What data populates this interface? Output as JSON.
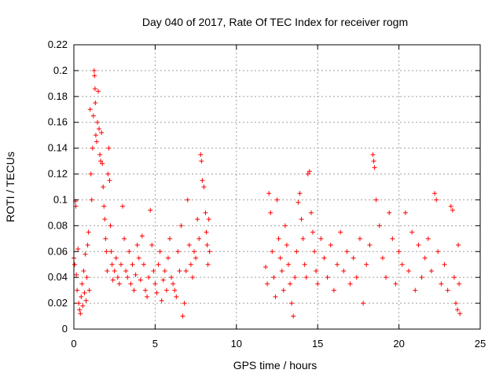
{
  "chart_data": {
    "type": "scatter",
    "title": "Day 040 of 2017, Rate Of TEC Index for receiver rogm",
    "xlabel": "GPS time / hours",
    "ylabel": "ROTI / TECUs",
    "xlim": [
      0,
      25
    ],
    "ylim": [
      0,
      0.22
    ],
    "xticks": [
      0,
      5,
      10,
      15,
      20,
      25
    ],
    "xtick_labels": [
      "0",
      "5",
      "10",
      "15",
      "20",
      "25"
    ],
    "yticks": [
      0,
      0.02,
      0.04,
      0.06,
      0.08,
      0.1,
      0.12,
      0.14,
      0.16,
      0.18,
      0.2,
      0.22
    ],
    "ytick_labels": [
      "0",
      "0.02",
      "0.04",
      "0.06",
      "0.08",
      "0.1",
      "0.12",
      "0.14",
      "0.16",
      "0.18",
      "0.2",
      "0.22"
    ],
    "grid": true,
    "marker": "+",
    "color": "#ff0000",
    "series": [
      {
        "values": [
          [
            0.0,
            0.055
          ],
          [
            0.05,
            0.05
          ],
          [
            0.1,
            0.099
          ],
          [
            0.12,
            0.095
          ],
          [
            0.15,
            0.042
          ],
          [
            0.2,
            0.03
          ],
          [
            0.25,
            0.062
          ],
          [
            0.3,
            0.02
          ],
          [
            0.35,
            0.015
          ],
          [
            0.4,
            0.012
          ],
          [
            0.45,
            0.025
          ],
          [
            0.5,
            0.035
          ],
          [
            0.55,
            0.018
          ],
          [
            0.6,
            0.045
          ],
          [
            0.65,
            0.028
          ],
          [
            0.7,
            0.058
          ],
          [
            0.75,
            0.022
          ],
          [
            0.8,
            0.04
          ],
          [
            0.85,
            0.065
          ],
          [
            0.9,
            0.075
          ],
          [
            0.95,
            0.03
          ],
          [
            1.0,
            0.17
          ],
          [
            1.05,
            0.12
          ],
          [
            1.1,
            0.1
          ],
          [
            1.15,
            0.14
          ],
          [
            1.2,
            0.165
          ],
          [
            1.25,
            0.2
          ],
          [
            1.27,
            0.196
          ],
          [
            1.3,
            0.186
          ],
          [
            1.32,
            0.175
          ],
          [
            1.35,
            0.15
          ],
          [
            1.4,
            0.145
          ],
          [
            1.45,
            0.16
          ],
          [
            1.5,
            0.184
          ],
          [
            1.55,
            0.155
          ],
          [
            1.6,
            0.135
          ],
          [
            1.65,
            0.13
          ],
          [
            1.7,
            0.152
          ],
          [
            1.75,
            0.128
          ],
          [
            1.8,
            0.11
          ],
          [
            1.85,
            0.095
          ],
          [
            1.9,
            0.085
          ],
          [
            1.95,
            0.07
          ],
          [
            2.0,
            0.06
          ],
          [
            2.05,
            0.045
          ],
          [
            2.1,
            0.12
          ],
          [
            2.15,
            0.14
          ],
          [
            2.2,
            0.115
          ],
          [
            2.25,
            0.08
          ],
          [
            2.3,
            0.06
          ],
          [
            2.35,
            0.05
          ],
          [
            2.4,
            0.038
          ],
          [
            2.5,
            0.045
          ],
          [
            2.6,
            0.055
          ],
          [
            2.7,
            0.04
          ],
          [
            2.8,
            0.035
          ],
          [
            2.9,
            0.05
          ],
          [
            3.0,
            0.095
          ],
          [
            3.1,
            0.07
          ],
          [
            3.2,
            0.045
          ],
          [
            3.3,
            0.04
          ],
          [
            3.4,
            0.06
          ],
          [
            3.5,
            0.035
          ],
          [
            3.6,
            0.05
          ],
          [
            3.7,
            0.03
          ],
          [
            3.8,
            0.042
          ],
          [
            3.9,
            0.065
          ],
          [
            4.0,
            0.055
          ],
          [
            4.1,
            0.038
          ],
          [
            4.2,
            0.072
          ],
          [
            4.3,
            0.05
          ],
          [
            4.4,
            0.03
          ],
          [
            4.5,
            0.025
          ],
          [
            4.6,
            0.04
          ],
          [
            4.7,
            0.092
          ],
          [
            4.8,
            0.065
          ],
          [
            4.9,
            0.045
          ],
          [
            5.0,
            0.035
          ],
          [
            5.1,
            0.028
          ],
          [
            5.2,
            0.05
          ],
          [
            5.3,
            0.06
          ],
          [
            5.4,
            0.022
          ],
          [
            5.5,
            0.038
          ],
          [
            5.6,
            0.045
          ],
          [
            5.7,
            0.03
          ],
          [
            5.8,
            0.055
          ],
          [
            5.9,
            0.07
          ],
          [
            6.0,
            0.04
          ],
          [
            6.1,
            0.035
          ],
          [
            6.2,
            0.03
          ],
          [
            6.3,
            0.025
          ],
          [
            6.4,
            0.06
          ],
          [
            6.5,
            0.045
          ],
          [
            6.6,
            0.08
          ],
          [
            6.7,
            0.01
          ],
          [
            6.8,
            0.02
          ],
          [
            6.9,
            0.045
          ],
          [
            7.0,
            0.1
          ],
          [
            7.1,
            0.065
          ],
          [
            7.2,
            0.05
          ],
          [
            7.3,
            0.04
          ],
          [
            7.4,
            0.06
          ],
          [
            7.5,
            0.055
          ],
          [
            7.6,
            0.085
          ],
          [
            7.7,
            0.07
          ],
          [
            7.8,
            0.135
          ],
          [
            7.85,
            0.13
          ],
          [
            7.9,
            0.115
          ],
          [
            8.0,
            0.11
          ],
          [
            8.1,
            0.09
          ],
          [
            8.15,
            0.075
          ],
          [
            8.2,
            0.065
          ],
          [
            8.25,
            0.05
          ],
          [
            8.3,
            0.085
          ],
          [
            8.35,
            0.06
          ],
          [
            11.8,
            0.048
          ],
          [
            11.9,
            0.035
          ],
          [
            12.0,
            0.105
          ],
          [
            12.1,
            0.09
          ],
          [
            12.2,
            0.06
          ],
          [
            12.3,
            0.04
          ],
          [
            12.4,
            0.025
          ],
          [
            12.5,
            0.1
          ],
          [
            12.6,
            0.07
          ],
          [
            12.7,
            0.055
          ],
          [
            12.8,
            0.045
          ],
          [
            12.9,
            0.03
          ],
          [
            13.0,
            0.08
          ],
          [
            13.1,
            0.065
          ],
          [
            13.2,
            0.05
          ],
          [
            13.3,
            0.035
          ],
          [
            13.4,
            0.02
          ],
          [
            13.5,
            0.01
          ],
          [
            13.6,
            0.04
          ],
          [
            13.7,
            0.06
          ],
          [
            13.8,
            0.098
          ],
          [
            13.9,
            0.105
          ],
          [
            14.0,
            0.085
          ],
          [
            14.1,
            0.07
          ],
          [
            14.2,
            0.05
          ],
          [
            14.3,
            0.04
          ],
          [
            14.4,
            0.12
          ],
          [
            14.5,
            0.122
          ],
          [
            14.6,
            0.09
          ],
          [
            14.7,
            0.075
          ],
          [
            14.8,
            0.06
          ],
          [
            14.9,
            0.045
          ],
          [
            15.0,
            0.035
          ],
          [
            15.2,
            0.07
          ],
          [
            15.4,
            0.055
          ],
          [
            15.6,
            0.04
          ],
          [
            15.8,
            0.065
          ],
          [
            16.0,
            0.03
          ],
          [
            16.2,
            0.05
          ],
          [
            16.4,
            0.075
          ],
          [
            16.6,
            0.045
          ],
          [
            16.8,
            0.06
          ],
          [
            17.0,
            0.035
          ],
          [
            17.2,
            0.055
          ],
          [
            17.4,
            0.04
          ],
          [
            17.6,
            0.07
          ],
          [
            17.8,
            0.02
          ],
          [
            18.0,
            0.05
          ],
          [
            18.2,
            0.065
          ],
          [
            18.4,
            0.135
          ],
          [
            18.45,
            0.13
          ],
          [
            18.5,
            0.125
          ],
          [
            18.6,
            0.1
          ],
          [
            18.8,
            0.08
          ],
          [
            19.0,
            0.055
          ],
          [
            19.2,
            0.04
          ],
          [
            19.4,
            0.09
          ],
          [
            19.6,
            0.07
          ],
          [
            19.8,
            0.035
          ],
          [
            20.0,
            0.06
          ],
          [
            20.2,
            0.05
          ],
          [
            20.4,
            0.09
          ],
          [
            20.6,
            0.045
          ],
          [
            20.8,
            0.075
          ],
          [
            21.0,
            0.03
          ],
          [
            21.2,
            0.065
          ],
          [
            21.4,
            0.04
          ],
          [
            21.6,
            0.055
          ],
          [
            21.8,
            0.07
          ],
          [
            22.0,
            0.045
          ],
          [
            22.2,
            0.105
          ],
          [
            22.3,
            0.1
          ],
          [
            22.4,
            0.06
          ],
          [
            22.6,
            0.035
          ],
          [
            22.8,
            0.05
          ],
          [
            23.0,
            0.03
          ],
          [
            23.2,
            0.095
          ],
          [
            23.3,
            0.092
          ],
          [
            23.4,
            0.04
          ],
          [
            23.5,
            0.02
          ],
          [
            23.6,
            0.015
          ],
          [
            23.65,
            0.065
          ],
          [
            23.7,
            0.035
          ],
          [
            23.75,
            0.012
          ]
        ]
      }
    ]
  }
}
